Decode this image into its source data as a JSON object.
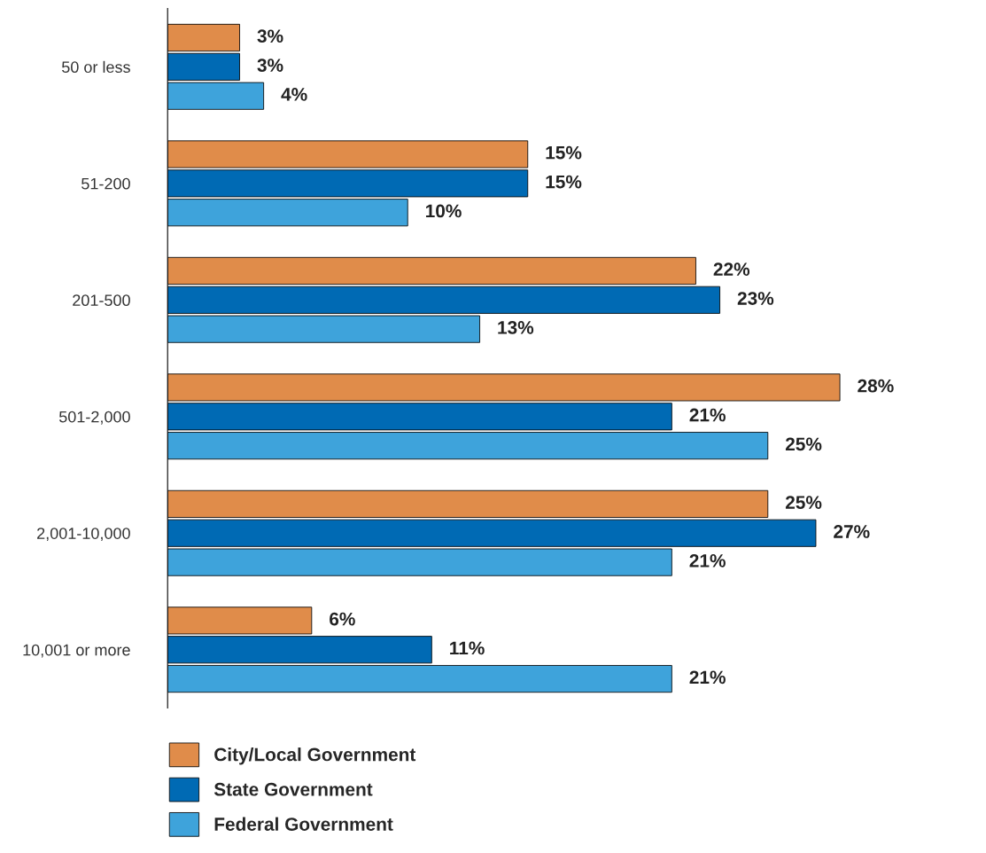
{
  "chart_data": {
    "type": "bar",
    "orientation": "horizontal",
    "categories": [
      "50 or less",
      "51-200",
      "201-500",
      "501-2,000",
      "2,001-10,000",
      "10,001 or more"
    ],
    "series": [
      {
        "name": "City/Local Government",
        "color": "#e08c4a",
        "values": [
          3,
          15,
          22,
          28,
          25,
          6
        ],
        "value_labels": [
          "3%",
          "15%",
          "22%",
          "28%",
          "25%",
          "6%"
        ]
      },
      {
        "name": "State Government",
        "color": "#006ab4",
        "values": [
          3,
          15,
          23,
          21,
          27,
          11
        ],
        "value_labels": [
          "3%",
          "15%",
          "23%",
          "21%",
          "27%",
          "11%"
        ]
      },
      {
        "name": "Federal Government",
        "color": "#3ea3db",
        "values": [
          4,
          10,
          13,
          25,
          21,
          21
        ],
        "value_labels": [
          "4%",
          "10%",
          "13%",
          "25%",
          "21%",
          "21%"
        ]
      }
    ],
    "legend": "bottom left",
    "grid": false
  }
}
